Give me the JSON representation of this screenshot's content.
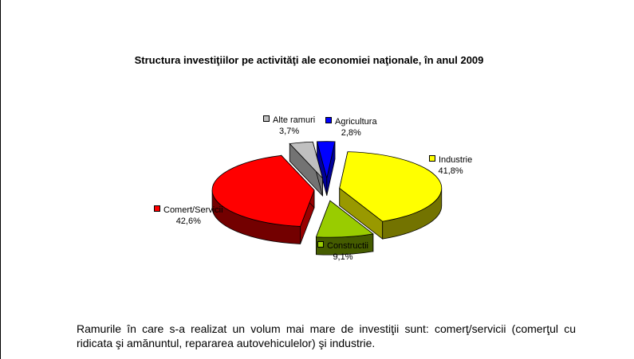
{
  "chart_data": {
    "type": "pie",
    "title": "Structura investiţiilor pe activităţi ale economiei naţionale, în anul 2009",
    "slices": [
      {
        "name": "Industrie",
        "value": 41.8,
        "label": "41,8%",
        "color": "#ffff00"
      },
      {
        "name": "Constructii",
        "value": 9.1,
        "label": "9,1%",
        "color": "#99cc00"
      },
      {
        "name": "Comert/Servicii",
        "value": 42.6,
        "label": "42,6%",
        "color": "#ff0000"
      },
      {
        "name": "Alte ramuri",
        "value": 3.7,
        "label": "3,7%",
        "color": "#c0c0c0"
      },
      {
        "name": "Agricultura",
        "value": 2.8,
        "label": "2,8%",
        "color": "#0000ff"
      }
    ],
    "exploded": true,
    "three_d": true
  },
  "note": "Ramurile în care s-a realizat un volum mai mare de investiţii sunt: comerţ/servicii (comerţul cu ridicata şi amănuntul, repararea autovehiculelor) şi industrie."
}
